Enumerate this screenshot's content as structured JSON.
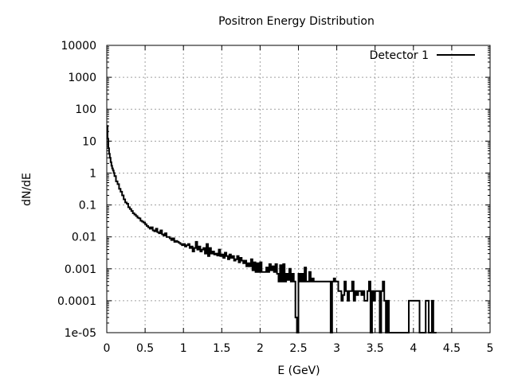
{
  "chart_data": {
    "type": "line",
    "style": "histogram-steps",
    "title": "Positron Energy Distribution",
    "xlabel": "E (GeV)",
    "ylabel": "dN/dE",
    "xlim": [
      0,
      5
    ],
    "ylim": [
      1e-05,
      10000
    ],
    "yscale": "log",
    "grid": true,
    "legend_position": "top-right",
    "x_ticks": [
      0,
      0.5,
      1,
      1.5,
      2,
      2.5,
      3,
      3.5,
      4,
      4.5,
      5
    ],
    "x_tick_labels": [
      "0",
      "0.5",
      "1",
      "1.5",
      "2",
      "2.5",
      "3",
      "3.5",
      "4",
      "4.5",
      "5"
    ],
    "y_ticks": [
      1e-05,
      0.0001,
      0.001,
      0.01,
      0.1,
      1,
      10,
      100,
      1000,
      10000
    ],
    "y_tick_labels": [
      "1e-05",
      "0.0001",
      "0.001",
      "0.01",
      "0.1",
      "1",
      "10",
      "100",
      "1000",
      "10000"
    ],
    "series": [
      {
        "name": "Detector 1",
        "color": "#000000",
        "points": [
          [
            0.0,
            30
          ],
          [
            0.01,
            12
          ],
          [
            0.02,
            6
          ],
          [
            0.03,
            4
          ],
          [
            0.04,
            3
          ],
          [
            0.05,
            2.2
          ],
          [
            0.06,
            1.7
          ],
          [
            0.07,
            1.4
          ],
          [
            0.08,
            1.2
          ],
          [
            0.09,
            1.0
          ],
          [
            0.1,
            0.8
          ],
          [
            0.12,
            0.55
          ],
          [
            0.14,
            0.45
          ],
          [
            0.16,
            0.32
          ],
          [
            0.18,
            0.26
          ],
          [
            0.2,
            0.2
          ],
          [
            0.22,
            0.15
          ],
          [
            0.24,
            0.12
          ],
          [
            0.26,
            0.11
          ],
          [
            0.28,
            0.085
          ],
          [
            0.3,
            0.075
          ],
          [
            0.32,
            0.065
          ],
          [
            0.34,
            0.055
          ],
          [
            0.36,
            0.05
          ],
          [
            0.38,
            0.045
          ],
          [
            0.4,
            0.04
          ],
          [
            0.42,
            0.038
          ],
          [
            0.44,
            0.032
          ],
          [
            0.46,
            0.03
          ],
          [
            0.48,
            0.028
          ],
          [
            0.5,
            0.025
          ],
          [
            0.52,
            0.022
          ],
          [
            0.54,
            0.02
          ],
          [
            0.56,
            0.018
          ],
          [
            0.58,
            0.02
          ],
          [
            0.6,
            0.016
          ],
          [
            0.62,
            0.015
          ],
          [
            0.64,
            0.018
          ],
          [
            0.66,
            0.014
          ],
          [
            0.68,
            0.013
          ],
          [
            0.7,
            0.016
          ],
          [
            0.72,
            0.012
          ],
          [
            0.74,
            0.011
          ],
          [
            0.76,
            0.013
          ],
          [
            0.78,
            0.01
          ],
          [
            0.8,
            0.01
          ],
          [
            0.82,
            0.009
          ],
          [
            0.84,
            0.008
          ],
          [
            0.86,
            0.009
          ],
          [
            0.88,
            0.007
          ],
          [
            0.9,
            0.0075
          ],
          [
            0.92,
            0.007
          ],
          [
            0.94,
            0.0065
          ],
          [
            0.96,
            0.006
          ],
          [
            0.98,
            0.0055
          ],
          [
            1.0,
            0.006
          ],
          [
            1.02,
            0.005
          ],
          [
            1.04,
            0.0055
          ],
          [
            1.06,
            0.006
          ],
          [
            1.08,
            0.0045
          ],
          [
            1.1,
            0.005
          ],
          [
            1.12,
            0.0035
          ],
          [
            1.14,
            0.0045
          ],
          [
            1.16,
            0.007
          ],
          [
            1.18,
            0.004
          ],
          [
            1.2,
            0.005
          ],
          [
            1.22,
            0.0035
          ],
          [
            1.24,
            0.004
          ],
          [
            1.26,
            0.0045
          ],
          [
            1.28,
            0.003
          ],
          [
            1.3,
            0.006
          ],
          [
            1.32,
            0.0025
          ],
          [
            1.34,
            0.0045
          ],
          [
            1.36,
            0.003
          ],
          [
            1.38,
            0.0035
          ],
          [
            1.4,
            0.0028
          ],
          [
            1.42,
            0.003
          ],
          [
            1.44,
            0.0026
          ],
          [
            1.46,
            0.004
          ],
          [
            1.48,
            0.0025
          ],
          [
            1.5,
            0.0028
          ],
          [
            1.52,
            0.0022
          ],
          [
            1.54,
            0.0032
          ],
          [
            1.56,
            0.0025
          ],
          [
            1.58,
            0.002
          ],
          [
            1.6,
            0.0028
          ],
          [
            1.62,
            0.0022
          ],
          [
            1.64,
            0.0025
          ],
          [
            1.66,
            0.0018
          ],
          [
            1.68,
            0.002
          ],
          [
            1.7,
            0.0025
          ],
          [
            1.72,
            0.0016
          ],
          [
            1.74,
            0.0022
          ],
          [
            1.76,
            0.0018
          ],
          [
            1.78,
            0.0015
          ],
          [
            1.8,
            0.0018
          ],
          [
            1.82,
            0.0012
          ],
          [
            1.84,
            0.0015
          ],
          [
            1.86,
            0.0012
          ],
          [
            1.88,
            0.002
          ],
          [
            1.9,
            0.0009
          ],
          [
            1.92,
            0.0016
          ],
          [
            1.94,
            0.0008
          ],
          [
            1.96,
            0.0015
          ],
          [
            1.98,
            0.0008
          ],
          [
            2.0,
            0.0016
          ],
          [
            2.02,
            0.0008
          ],
          [
            2.04,
            0.0008
          ],
          [
            2.06,
            0.0008
          ],
          [
            2.08,
            0.0011
          ],
          [
            2.1,
            0.0008
          ],
          [
            2.12,
            0.0014
          ],
          [
            2.14,
            0.0009
          ],
          [
            2.16,
            0.0012
          ],
          [
            2.18,
            0.0008
          ],
          [
            2.2,
            0.0014
          ],
          [
            2.22,
            0.0007
          ],
          [
            2.24,
            0.0004
          ],
          [
            2.26,
            0.0013
          ],
          [
            2.28,
            0.0004
          ],
          [
            2.3,
            0.0014
          ],
          [
            2.32,
            0.0004
          ],
          [
            2.34,
            0.0007
          ],
          [
            2.36,
            0.00045
          ],
          [
            2.38,
            0.001
          ],
          [
            2.4,
            0.0004
          ],
          [
            2.42,
            0.0007
          ],
          [
            2.44,
            0.0004
          ],
          [
            2.46,
            3e-05
          ],
          [
            2.48,
            5e-06
          ],
          [
            2.5,
            0.0007
          ],
          [
            2.52,
            0.0004
          ],
          [
            2.54,
            0.0007
          ],
          [
            2.56,
            0.0004
          ],
          [
            2.58,
            0.0011
          ],
          [
            2.6,
            0.0004
          ],
          [
            2.62,
            0.0004
          ],
          [
            2.64,
            0.0008
          ],
          [
            2.66,
            0.0004
          ],
          [
            2.68,
            0.0005
          ],
          [
            2.7,
            0.0004
          ],
          [
            2.72,
            0.0004
          ],
          [
            2.74,
            0.0004
          ],
          [
            2.76,
            0.0004
          ],
          [
            2.78,
            0.0004
          ],
          [
            2.8,
            0.0004
          ],
          [
            2.82,
            0.0004
          ],
          [
            2.84,
            0.0004
          ],
          [
            2.86,
            0.0004
          ],
          [
            2.88,
            0.0004
          ],
          [
            2.9,
            0.0004
          ],
          [
            2.92,
            5e-06
          ],
          [
            2.94,
            0.0004
          ],
          [
            2.96,
            0.0005
          ],
          [
            2.98,
            0.0004
          ],
          [
            3.0,
            0.0004
          ],
          [
            3.02,
            0.0002
          ],
          [
            3.04,
            0.0002
          ],
          [
            3.06,
            0.0001
          ],
          [
            3.08,
            0.00015
          ],
          [
            3.1,
            0.0004
          ],
          [
            3.12,
            0.0002
          ],
          [
            3.14,
            0.0001
          ],
          [
            3.16,
            0.0002
          ],
          [
            3.18,
            0.0002
          ],
          [
            3.2,
            0.0004
          ],
          [
            3.22,
            0.0001
          ],
          [
            3.24,
            0.0002
          ],
          [
            3.26,
            0.00015
          ],
          [
            3.28,
            0.0002
          ],
          [
            3.3,
            0.0002
          ],
          [
            3.32,
            0.00015
          ],
          [
            3.34,
            0.0002
          ],
          [
            3.36,
            0.0001
          ],
          [
            3.38,
            0.0001
          ],
          [
            3.4,
            0.0002
          ],
          [
            3.42,
            0.0004
          ],
          [
            3.44,
            5e-06
          ],
          [
            3.46,
            0.0002
          ],
          [
            3.48,
            0.0001
          ],
          [
            3.5,
            0.0002
          ],
          [
            3.52,
            0.0002
          ],
          [
            3.54,
            0.0002
          ],
          [
            3.56,
            5e-06
          ],
          [
            3.58,
            0.0002
          ],
          [
            3.6,
            0.0004
          ],
          [
            3.62,
            0.0001
          ],
          [
            3.64,
            5e-06
          ],
          [
            3.66,
            0.0001
          ],
          [
            3.68,
            5e-06
          ],
          [
            3.7,
            5e-06
          ],
          [
            3.8,
            5e-06
          ],
          [
            3.9,
            5e-06
          ],
          [
            3.94,
            0.0001
          ],
          [
            3.96,
            0.0001
          ],
          [
            3.98,
            0.0001
          ],
          [
            4.0,
            0.0001
          ],
          [
            4.02,
            0.0001
          ],
          [
            4.04,
            0.0001
          ],
          [
            4.06,
            0.0001
          ],
          [
            4.08,
            5e-06
          ],
          [
            4.1,
            5e-06
          ],
          [
            4.12,
            5e-06
          ],
          [
            4.14,
            5e-06
          ],
          [
            4.16,
            0.0001
          ],
          [
            4.18,
            0.0001
          ],
          [
            4.2,
            5e-06
          ],
          [
            4.22,
            5e-06
          ],
          [
            4.24,
            0.0001
          ],
          [
            4.26,
            5e-06
          ],
          [
            4.28,
            5e-06
          ]
        ]
      }
    ]
  }
}
